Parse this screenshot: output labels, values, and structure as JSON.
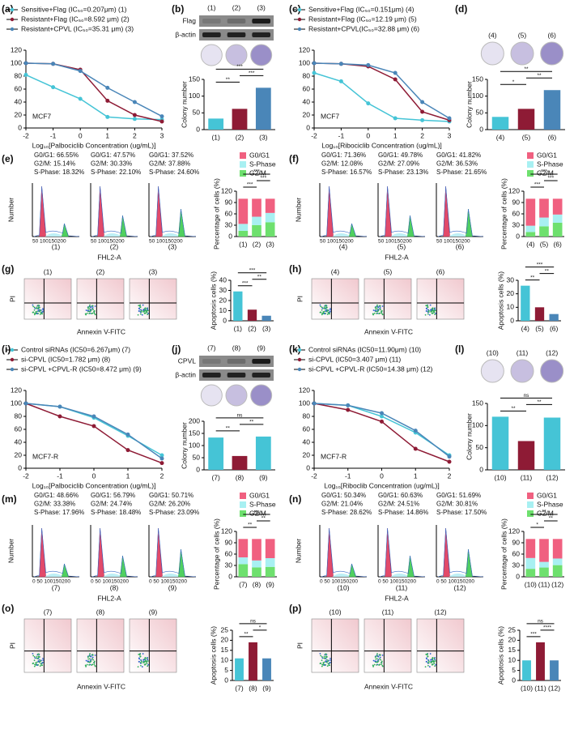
{
  "chart_data": [
    {
      "type": "line",
      "panel": "(a)",
      "annotation": "MCF7",
      "xlabel": "Log₁₀[Palbociclib Concentration (ug/mL)]",
      "x": [
        -2,
        -1,
        0,
        1,
        2,
        3
      ],
      "xlim": [
        -2,
        3
      ],
      "xticks": [
        -2,
        -1,
        0,
        1,
        2,
        3
      ],
      "ylim": [
        0,
        120
      ],
      "yticks": [
        0,
        20,
        40,
        60,
        80,
        100,
        120
      ],
      "series": [
        {
          "name": "Sensitive+Flag (IC₅₀=0.207μm) (1)",
          "color": "#45c4d6",
          "values": [
            82,
            63,
            45,
            17,
            14,
            13
          ]
        },
        {
          "name": "Resistant+Flag (IC₅₀=8.592 μm) (2)",
          "color": "#8e1b35",
          "values": [
            100,
            99,
            90,
            42,
            20,
            10
          ]
        },
        {
          "name": "Resistant+CPVL (IC₅₀=35.31 μm) (3)",
          "color": "#4a86b8",
          "values": [
            100,
            99,
            88,
            62,
            40,
            18
          ]
        }
      ]
    },
    {
      "type": "blot",
      "panel": "(b)",
      "lanes": [
        "(1)",
        "(2)",
        "(3)"
      ],
      "rows": [
        "Flag",
        "β-actin"
      ]
    },
    {
      "type": "bar",
      "categories": [
        "(1)",
        "(2)",
        "(3)"
      ],
      "values": [
        33,
        62,
        125
      ],
      "colors": [
        "#45c4d6",
        "#8e1b35",
        "#4a86b8"
      ],
      "ylim": [
        0,
        150
      ],
      "yticks": [
        0,
        50,
        100,
        150
      ],
      "ylabel": "Colony number",
      "significance": [
        "**",
        "***",
        "***"
      ]
    },
    {
      "type": "line",
      "panel": "(c)",
      "annotation": "MCF7",
      "xlabel": "Log₁₀[Ribociclib Concentration (ug/mL)]",
      "x": [
        -2,
        -1,
        0,
        1,
        2,
        3
      ],
      "xlim": [
        -2,
        3
      ],
      "xticks": [
        -2,
        -1,
        0,
        1,
        2,
        3
      ],
      "ylim": [
        0,
        120
      ],
      "yticks": [
        0,
        20,
        40,
        60,
        80,
        100,
        120
      ],
      "series": [
        {
          "name": "Sensitive+Flag (IC₅₀=0.151μm) (4)",
          "color": "#45c4d6",
          "values": [
            85,
            72,
            38,
            15,
            12,
            10
          ]
        },
        {
          "name": "Resistant+Flag (IC₅₀=12.19 μm) (5)",
          "color": "#8e1b35",
          "values": [
            100,
            99,
            95,
            75,
            25,
            12
          ]
        },
        {
          "name": "Resistant+CPVL(IC₅₀=32.88 μm) (6)",
          "color": "#4a86b8",
          "values": [
            100,
            99,
            97,
            85,
            40,
            15
          ]
        }
      ]
    },
    {
      "type": "colony",
      "panel": "(d)",
      "labels": [
        "(4)",
        "(5)",
        "(6)"
      ]
    },
    {
      "type": "bar",
      "categories": [
        "(4)",
        "(5)",
        "(6)"
      ],
      "values": [
        38,
        62,
        118
      ],
      "colors": [
        "#45c4d6",
        "#8e1b35",
        "#4a86b8"
      ],
      "ylim": [
        0,
        150
      ],
      "yticks": [
        0,
        50,
        100,
        150
      ],
      "ylabel": "Colony number",
      "significance": [
        "*",
        "**",
        "**"
      ]
    },
    {
      "type": "flow_histogram",
      "panel": "(e)",
      "xlabel": "FHL2-A",
      "ylabel": "Number",
      "tick_text": "50 100150200",
      "samples": [
        {
          "label": "(1)",
          "stats": [
            "G0/G1: 66.55%",
            "G2/M: 15.14%",
            "S-Phase: 18.32%"
          ]
        },
        {
          "label": "(2)",
          "stats": [
            "G0/G1: 47.57%",
            "G2/M: 30.33%",
            "S-Phase: 22.10%"
          ]
        },
        {
          "label": "(3)",
          "stats": [
            "G0/G1: 37.52%",
            "G2/M: 37.88%",
            "S-Phase: 24.60%"
          ]
        }
      ]
    },
    {
      "type": "stacked_bar",
      "categories": [
        "(1)",
        "(2)",
        "(3)"
      ],
      "ylim": [
        0,
        120
      ],
      "yticks": [
        0,
        30,
        60,
        90,
        120
      ],
      "ylabel": "Percentage of cells (%)",
      "significance": [
        "***",
        "***",
        "***"
      ],
      "series": [
        {
          "name": "G0/G1",
          "color": "#f06080",
          "values": [
            66.55,
            47.57,
            37.52
          ]
        },
        {
          "name": "S-Phase",
          "color": "#a8f0f2",
          "values": [
            18.32,
            22.1,
            24.6
          ]
        },
        {
          "name": "G2/M",
          "color": "#6ee06e",
          "values": [
            15.14,
            30.33,
            37.88
          ]
        }
      ]
    },
    {
      "type": "flow_histogram",
      "panel": "(f)",
      "xlabel": "FHL2-A",
      "ylabel": "Number",
      "tick_text": "50 100150200",
      "samples": [
        {
          "label": "(4)",
          "stats": [
            "G0/G1: 71.36%",
            "G2/M: 12.08%",
            "S-Phase: 16.57%"
          ]
        },
        {
          "label": "(5)",
          "stats": [
            "G0/G1: 49.78%",
            "G2/M: 27.09%",
            "S-Phase: 23.13%"
          ]
        },
        {
          "label": "(6)",
          "stats": [
            "G0/G1: 41.82%",
            "G2/M: 36.53%",
            "S-Phase: 21.65%"
          ]
        }
      ]
    },
    {
      "type": "stacked_bar",
      "categories": [
        "(4)",
        "(5)",
        "(6)"
      ],
      "ylim": [
        0,
        120
      ],
      "yticks": [
        0,
        30,
        60,
        90,
        120
      ],
      "ylabel": "Percentage of cells (%)",
      "significance": [
        "***",
        "***",
        "***"
      ],
      "series": [
        {
          "name": "G0/G1",
          "color": "#f06080",
          "values": [
            71.36,
            49.78,
            41.82
          ]
        },
        {
          "name": "S-Phase",
          "color": "#a8f0f2",
          "values": [
            16.57,
            23.13,
            21.65
          ]
        },
        {
          "name": "G2/M",
          "color": "#6ee06e",
          "values": [
            12.08,
            27.09,
            36.53
          ]
        }
      ]
    },
    {
      "type": "flow_dotplot",
      "panel": "(g)",
      "samples": [
        "(1)",
        "(2)",
        "(3)"
      ],
      "xlabel": "Annexin V-FITC",
      "ylabel": "PI"
    },
    {
      "type": "bar",
      "categories": [
        "(1)",
        "(2)",
        "(3)"
      ],
      "values": [
        29,
        11,
        5
      ],
      "colors": [
        "#45c4d6",
        "#8e1b35",
        "#4a86b8"
      ],
      "ylim": [
        0,
        40
      ],
      "yticks": [
        0,
        10,
        20,
        30,
        40
      ],
      "ylabel": "Apoptosis cells (%)",
      "significance": [
        "***",
        "**",
        "***"
      ]
    },
    {
      "type": "flow_dotplot",
      "panel": "(h)",
      "samples": [
        "(4)",
        "(5)",
        "(6)"
      ],
      "xlabel": "Annexin V-FITC",
      "ylabel": "PI"
    },
    {
      "type": "bar",
      "categories": [
        "(4)",
        "(5)",
        "(6)"
      ],
      "values": [
        26,
        10,
        5
      ],
      "colors": [
        "#45c4d6",
        "#8e1b35",
        "#4a86b8"
      ],
      "ylim": [
        0,
        30
      ],
      "yticks": [
        0,
        10,
        20,
        30
      ],
      "ylabel": "Apoptosis cells (%)",
      "significance": [
        "**",
        "**",
        "***"
      ]
    },
    {
      "type": "line",
      "panel": "(i)",
      "annotation": "MCF7-R",
      "xlabel": "Log₁₀[Palbociclib Concentration (ug/mL)]",
      "x": [
        -2,
        -1,
        0,
        1,
        2
      ],
      "xlim": [
        -2,
        2
      ],
      "xticks": [
        -2,
        -1,
        0,
        1,
        2
      ],
      "ylim": [
        0,
        120
      ],
      "yticks": [
        0,
        20,
        40,
        60,
        80,
        100,
        120
      ],
      "series": [
        {
          "name": "Control siRNAs (IC50=6.267μm) (7)",
          "color": "#45c4d6",
          "values": [
            100,
            95,
            78,
            50,
            20
          ]
        },
        {
          "name": "si-CPVL (IC50=1.782 μm) (8)",
          "color": "#8e1b35",
          "values": [
            100,
            80,
            65,
            28,
            8
          ]
        },
        {
          "name": "si-CPVL +CPVL-R (IC50=8.472 μm) (9)",
          "color": "#4a86b8",
          "values": [
            100,
            95,
            80,
            52,
            15
          ]
        }
      ]
    },
    {
      "type": "blot",
      "panel": "(j)",
      "lanes": [
        "(7)",
        "(8)",
        "(9)"
      ],
      "rows": [
        "CPVL",
        "β-actin"
      ]
    },
    {
      "type": "bar",
      "categories": [
        "(7)",
        "(8)",
        "(9)"
      ],
      "values": [
        133,
        57,
        137
      ],
      "colors": [
        "#45c4d6",
        "#8e1b35",
        "#45c4d6"
      ],
      "ylim": [
        0,
        200
      ],
      "yticks": [
        0,
        50,
        100,
        150,
        200
      ],
      "ylabel": "Colony number",
      "significance": [
        "**",
        "**",
        "ns"
      ]
    },
    {
      "type": "line",
      "panel": "(k)",
      "annotation": "MCF7-R",
      "xlabel": "Log₁₀[Riboclib Concentration (ug/mL)]",
      "x": [
        -2,
        -1,
        0,
        1,
        2
      ],
      "xlim": [
        -2,
        2
      ],
      "xticks": [
        -2,
        -1,
        0,
        1,
        2
      ],
      "ylim": [
        0,
        120
      ],
      "yticks": [
        0,
        20,
        40,
        60,
        80,
        100,
        120
      ],
      "series": [
        {
          "name": "Control siRNAs (IC50=11.90μm) (10)",
          "color": "#45c4d6",
          "values": [
            100,
            97,
            80,
            55,
            20
          ]
        },
        {
          "name": "si-CPVL (IC50=3.407 μm) (11)",
          "color": "#8e1b35",
          "values": [
            100,
            90,
            72,
            30,
            10
          ]
        },
        {
          "name": "si-CPVL +CPVL-R (IC50=14.38 μm) (12)",
          "color": "#4a86b8",
          "values": [
            100,
            97,
            85,
            58,
            18
          ]
        }
      ]
    },
    {
      "type": "colony",
      "panel": "(l)",
      "labels": [
        "(10)",
        "(11)",
        "(12)"
      ]
    },
    {
      "type": "bar",
      "categories": [
        "(10)",
        "(11)",
        "(12)"
      ],
      "values": [
        120,
        65,
        118
      ],
      "colors": [
        "#45c4d6",
        "#8e1b35",
        "#45c4d6"
      ],
      "ylim": [
        0,
        150
      ],
      "yticks": [
        0,
        50,
        100,
        150
      ],
      "ylabel": "Colony number",
      "significance": [
        "**",
        "**",
        "ns"
      ]
    },
    {
      "type": "flow_histogram",
      "panel": "(m)",
      "xlabel": "FHL2-A",
      "ylabel": "Number",
      "tick_text": "0 50 100150200",
      "samples": [
        {
          "label": "(7)",
          "stats": [
            "G0/G1: 48.66%",
            "G2/M: 33.38%",
            "S-Phase: 17.96%"
          ]
        },
        {
          "label": "(8)",
          "stats": [
            "G0/G1: 56.79%",
            "G2/M: 24.74%",
            "S-Phase: 18.48%"
          ]
        },
        {
          "label": "(9)",
          "stats": [
            "G0/G1: 50.71%",
            "G2/M: 26.20%",
            "S-Phase: 23.09%"
          ]
        }
      ]
    },
    {
      "type": "stacked_bar",
      "categories": [
        "(7)",
        "(8)",
        "(9)"
      ],
      "ylim": [
        0,
        120
      ],
      "yticks": [
        0,
        30,
        60,
        90,
        120
      ],
      "ylabel": "Percentage of cells (%)",
      "significance": [
        "**",
        "**",
        "ns"
      ],
      "series": [
        {
          "name": "G0/G1",
          "color": "#f06080",
          "values": [
            48.66,
            56.79,
            50.71
          ]
        },
        {
          "name": "S-Phase",
          "color": "#a8f0f2",
          "values": [
            17.96,
            18.48,
            23.09
          ]
        },
        {
          "name": "G2/M",
          "color": "#6ee06e",
          "values": [
            33.38,
            24.74,
            26.2
          ]
        }
      ]
    },
    {
      "type": "flow_histogram",
      "panel": "(n)",
      "xlabel": "FHL2-A",
      "ylabel": "Number",
      "tick_text": "0 50 100150200",
      "samples": [
        {
          "label": "(10)",
          "stats": [
            "G0/G1: 50.34%",
            "G2/M: 21.04%",
            "S-Phase: 28.62%"
          ]
        },
        {
          "label": "(11)",
          "stats": [
            "G0/G1: 60.63%",
            "G2/M: 24.51%",
            "S-Phase: 14.86%"
          ]
        },
        {
          "label": "(12)",
          "stats": [
            "G0/G1: 51.69%",
            "G2/M: 30.81%",
            "S-Phase: 17.50%"
          ]
        }
      ]
    },
    {
      "type": "stacked_bar",
      "categories": [
        "(10)",
        "(11)",
        "(12)"
      ],
      "ylim": [
        0,
        120
      ],
      "yticks": [
        0,
        30,
        60,
        90,
        120
      ],
      "ylabel": "Percentage of cells (%)",
      "significance": [
        "*",
        "**",
        "**"
      ],
      "series": [
        {
          "name": "G0/G1",
          "color": "#f06080",
          "values": [
            50.34,
            60.63,
            51.69
          ]
        },
        {
          "name": "S-Phase",
          "color": "#a8f0f2",
          "values": [
            28.62,
            14.86,
            17.5
          ]
        },
        {
          "name": "G2/M",
          "color": "#6ee06e",
          "values": [
            21.04,
            24.51,
            30.81
          ]
        }
      ]
    },
    {
      "type": "flow_dotplot",
      "panel": "(o)",
      "samples": [
        "(7)",
        "(8)",
        "(9)"
      ],
      "xlabel": "Annexin V-FITC",
      "ylabel": "PI"
    },
    {
      "type": "bar",
      "categories": [
        "(7)",
        "(8)",
        "(9)"
      ],
      "values": [
        11,
        19,
        11
      ],
      "colors": [
        "#45c4d6",
        "#8e1b35",
        "#4a86b8"
      ],
      "ylim": [
        0,
        25
      ],
      "yticks": [
        0,
        5,
        10,
        15,
        20,
        25
      ],
      "ylabel": "Apoptosis cells (%)",
      "significance": [
        "**",
        "*",
        "ns"
      ]
    },
    {
      "type": "flow_dotplot",
      "panel": "(p)",
      "samples": [
        "(10)",
        "(11)",
        "(12)"
      ],
      "xlabel": "Annexin V-FITC",
      "ylabel": "PI"
    },
    {
      "type": "bar",
      "categories": [
        "(10)",
        "(11)",
        "(12)"
      ],
      "values": [
        10,
        19,
        10
      ],
      "colors": [
        "#45c4d6",
        "#8e1b35",
        "#4a86b8"
      ],
      "ylim": [
        0,
        25
      ],
      "yticks": [
        0,
        5,
        10,
        15,
        20,
        25
      ],
      "ylabel": "Apoptosis cells (%)",
      "significance": [
        "***",
        "****",
        "ns"
      ]
    }
  ]
}
